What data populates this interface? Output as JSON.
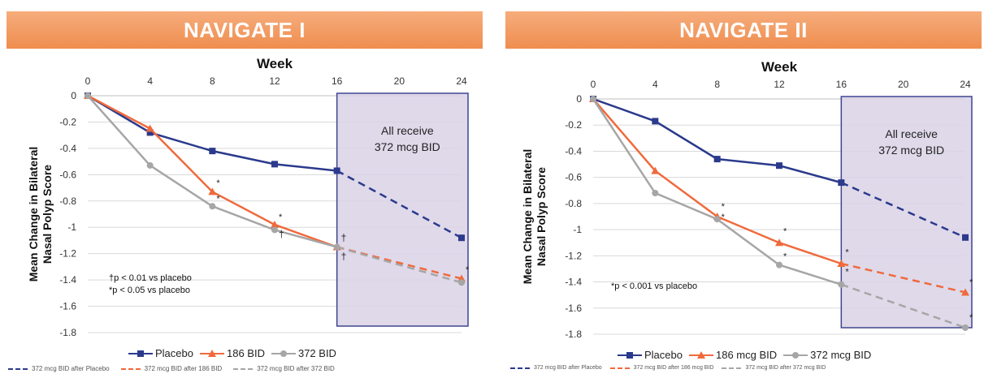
{
  "colors": {
    "placebo": "#2b3a8c",
    "mid_dose": "#ef6a3c",
    "high_dose": "#a6a6a6",
    "box_fill": "#d9d2e6",
    "box_stroke": "#3f4590",
    "banner": "#ef8d4f"
  },
  "chart_data": [
    {
      "type": "line",
      "title": "NAVIGATE I",
      "xlabel": "Week",
      "ylabel": "Mean Change in Bilateral Nasal Polyp Score",
      "xlim": [
        0,
        24
      ],
      "ylim": [
        -1.8,
        0
      ],
      "x_ticks": [
        "0",
        "4",
        "8",
        "12",
        "16",
        "20",
        "24"
      ],
      "y_ticks": [
        "0",
        "-0.2",
        "-0.4",
        "-0.6",
        "-0.8",
        "-1",
        "-1.2",
        "-1.4",
        "-1.6",
        "-1.8"
      ],
      "grid": true,
      "box": {
        "x_start": 16,
        "x_end": 24,
        "text_line1": "All receive",
        "text_line2": "372 mcg BID"
      },
      "series": [
        {
          "name": "Placebo",
          "color_key": "placebo",
          "marker": "square",
          "x": [
            0,
            4,
            8,
            12,
            16
          ],
          "y": [
            0,
            -0.28,
            -0.42,
            -0.52,
            -0.57
          ],
          "ext_x": [
            16,
            24
          ],
          "ext_y": [
            -0.57,
            -1.08
          ]
        },
        {
          "name": "186 BID",
          "color_key": "mid_dose",
          "marker": "triangle",
          "x": [
            0,
            4,
            8,
            12,
            16
          ],
          "y": [
            0,
            -0.25,
            -0.73,
            -0.98,
            -1.15
          ],
          "ext_x": [
            16,
            24
          ],
          "ext_y": [
            -1.15,
            -1.39
          ]
        },
        {
          "name": "372 BID",
          "color_key": "high_dose",
          "marker": "circle",
          "x": [
            0,
            4,
            8,
            12,
            16
          ],
          "y": [
            0,
            -0.53,
            -0.84,
            -1.02,
            -1.15
          ],
          "ext_x": [
            16,
            24
          ],
          "ext_y": [
            -1.15,
            -1.42
          ]
        }
      ],
      "annotations": [
        {
          "x": 8,
          "y": -0.66,
          "text": "*"
        },
        {
          "x": 8,
          "y": -0.78,
          "text": "*"
        },
        {
          "x": 12,
          "y": -0.92,
          "text": "*"
        },
        {
          "x": 12,
          "y": -1.05,
          "text": "†"
        },
        {
          "x": 16,
          "y": -1.08,
          "text": "†"
        },
        {
          "x": 16,
          "y": -1.22,
          "text": "†"
        },
        {
          "x": 24,
          "y": -1.32,
          "text": "*"
        }
      ],
      "footnotes": [
        "†p < 0.01 vs placebo",
        "*p < 0.05  vs placebo"
      ],
      "legend_main": [
        "Placebo",
        "186 BID",
        "372 BID"
      ],
      "legend_ext": [
        "372 mcg BID after Placebo",
        "372 mcg BID after 186 BID",
        "372 mcg BID after 372 BID"
      ]
    },
    {
      "type": "line",
      "title": "NAVIGATE II",
      "xlabel": "Week",
      "ylabel": "Mean Change in Bilateral Nasal Polyp Score",
      "xlim": [
        0,
        24
      ],
      "ylim": [
        -1.8,
        0
      ],
      "x_ticks": [
        "0",
        "4",
        "8",
        "12",
        "16",
        "20",
        "24"
      ],
      "y_ticks": [
        "0",
        "-0.2",
        "-0.4",
        "-0.6",
        "-0.8",
        "-1",
        "-1.2",
        "-1.4",
        "-1.6",
        "-1.8"
      ],
      "grid": true,
      "box": {
        "x_start": 16,
        "x_end": 24,
        "text_line1": "All receive",
        "text_line2": "372 mcg BID"
      },
      "series": [
        {
          "name": "Placebo",
          "color_key": "placebo",
          "marker": "square",
          "x": [
            0,
            4,
            8,
            12,
            16
          ],
          "y": [
            0,
            -0.17,
            -0.46,
            -0.51,
            -0.64
          ],
          "ext_x": [
            16,
            24
          ],
          "ext_y": [
            -0.64,
            -1.06
          ]
        },
        {
          "name": "186 mcg BID",
          "color_key": "mid_dose",
          "marker": "triangle",
          "x": [
            0,
            4,
            8,
            12,
            16
          ],
          "y": [
            0,
            -0.55,
            -0.9,
            -1.1,
            -1.26
          ],
          "ext_x": [
            16,
            24
          ],
          "ext_y": [
            -1.26,
            -1.48
          ]
        },
        {
          "name": "372 mcg BID",
          "color_key": "high_dose",
          "marker": "circle",
          "x": [
            0,
            4,
            8,
            12,
            16
          ],
          "y": [
            0,
            -0.72,
            -0.92,
            -1.27,
            -1.42
          ],
          "ext_x": [
            16,
            24
          ],
          "ext_y": [
            -1.42,
            -1.75
          ]
        }
      ],
      "annotations": [
        {
          "x": 8,
          "y": -0.82,
          "text": "*"
        },
        {
          "x": 8,
          "y": -0.9,
          "text": "*"
        },
        {
          "x": 12,
          "y": -1.01,
          "text": "*"
        },
        {
          "x": 12,
          "y": -1.2,
          "text": "*"
        },
        {
          "x": 16,
          "y": -1.17,
          "text": "*"
        },
        {
          "x": 16,
          "y": -1.32,
          "text": "*"
        },
        {
          "x": 24,
          "y": -1.4,
          "text": "*"
        },
        {
          "x": 24,
          "y": -1.67,
          "text": "*"
        }
      ],
      "footnotes": [
        "*p < 0.001 vs placebo"
      ],
      "legend_main": [
        "Placebo",
        "186 mcg BID",
        "372 mcg BID"
      ],
      "legend_ext": [
        "372 mcg BID after Placebo",
        "372 mcg BID after 186 mcg BID",
        "372 mcg BID after 372 mcg BID"
      ]
    }
  ]
}
